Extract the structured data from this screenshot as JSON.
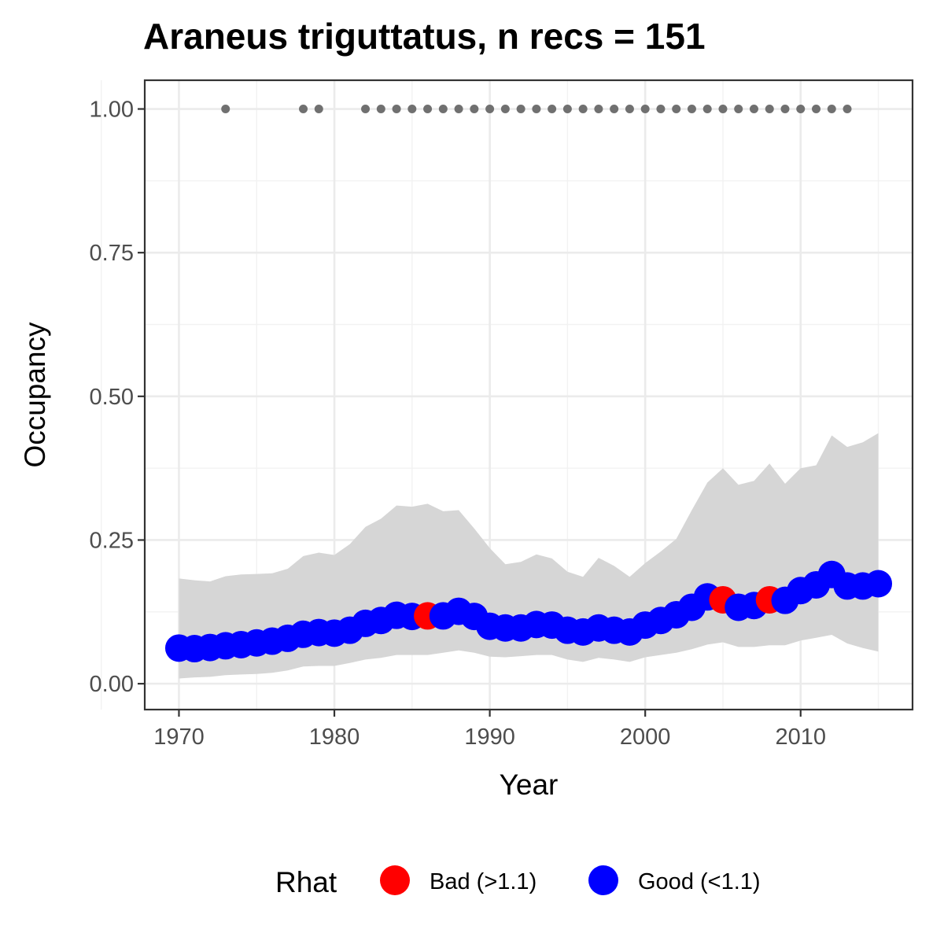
{
  "chart_data": {
    "type": "line",
    "title": "Araneus triguttatus, n recs = 151",
    "xlabel": "Year",
    "ylabel": "Occupancy",
    "xlim": [
      1967.8,
      2017.2
    ],
    "ylim": [
      -0.045,
      1.05
    ],
    "x_ticks": [
      1970,
      1980,
      1990,
      2000,
      2010
    ],
    "x_tick_labels": [
      "1970",
      "1980",
      "1990",
      "2000",
      "2010"
    ],
    "y_ticks": [
      0,
      0.25,
      0.5,
      0.75,
      1.0
    ],
    "y_tick_labels": [
      "0.00",
      "0.25",
      "0.50",
      "0.75",
      "1.00"
    ],
    "grid": true,
    "legend": {
      "title": "Rhat",
      "position": "bottom",
      "entries": [
        {
          "label": "Bad (>1.1)",
          "color": "#FF0000"
        },
        {
          "label": "Good (<1.1)",
          "color": "#0000FF"
        }
      ]
    },
    "colors": {
      "bad": "#FF0000",
      "good": "#0000FF",
      "ribbon": "#D6D6D6",
      "records": "#707070"
    },
    "x": [
      1970,
      1971,
      1972,
      1973,
      1974,
      1975,
      1976,
      1977,
      1978,
      1979,
      1980,
      1981,
      1982,
      1983,
      1984,
      1985,
      1986,
      1987,
      1988,
      1989,
      1990,
      1991,
      1992,
      1993,
      1994,
      1995,
      1996,
      1997,
      1998,
      1999,
      2000,
      2001,
      2002,
      2003,
      2004,
      2005,
      2006,
      2007,
      2008,
      2009,
      2010,
      2011,
      2012,
      2013,
      2014,
      2015
    ],
    "occupancy": [
      0.062,
      0.061,
      0.063,
      0.066,
      0.068,
      0.071,
      0.074,
      0.079,
      0.086,
      0.089,
      0.088,
      0.093,
      0.105,
      0.11,
      0.119,
      0.117,
      0.118,
      0.118,
      0.126,
      0.117,
      0.1,
      0.097,
      0.097,
      0.103,
      0.102,
      0.093,
      0.09,
      0.097,
      0.093,
      0.09,
      0.102,
      0.11,
      0.12,
      0.133,
      0.151,
      0.146,
      0.133,
      0.136,
      0.146,
      0.145,
      0.162,
      0.172,
      0.19,
      0.17,
      0.17,
      0.174
    ],
    "lower": [
      0.009,
      0.011,
      0.012,
      0.015,
      0.016,
      0.017,
      0.019,
      0.023,
      0.03,
      0.031,
      0.031,
      0.036,
      0.042,
      0.045,
      0.05,
      0.05,
      0.05,
      0.054,
      0.058,
      0.054,
      0.047,
      0.046,
      0.048,
      0.05,
      0.05,
      0.042,
      0.038,
      0.045,
      0.042,
      0.038,
      0.046,
      0.05,
      0.054,
      0.06,
      0.068,
      0.072,
      0.064,
      0.064,
      0.067,
      0.067,
      0.075,
      0.08,
      0.085,
      0.07,
      0.062,
      0.056
    ],
    "upper": [
      0.183,
      0.18,
      0.178,
      0.187,
      0.19,
      0.191,
      0.192,
      0.2,
      0.222,
      0.228,
      0.224,
      0.243,
      0.273,
      0.287,
      0.31,
      0.308,
      0.313,
      0.3,
      0.302,
      0.27,
      0.236,
      0.208,
      0.212,
      0.225,
      0.218,
      0.195,
      0.186,
      0.219,
      0.205,
      0.186,
      0.21,
      0.23,
      0.252,
      0.302,
      0.35,
      0.375,
      0.346,
      0.353,
      0.383,
      0.348,
      0.375,
      0.38,
      0.432,
      0.412,
      0.42,
      0.436
    ],
    "rhat": [
      "Good",
      "Good",
      "Good",
      "Good",
      "Good",
      "Good",
      "Good",
      "Good",
      "Good",
      "Good",
      "Good",
      "Good",
      "Good",
      "Good",
      "Good",
      "Good",
      "Bad",
      "Good",
      "Good",
      "Good",
      "Good",
      "Good",
      "Good",
      "Good",
      "Good",
      "Good",
      "Good",
      "Good",
      "Good",
      "Good",
      "Good",
      "Good",
      "Good",
      "Good",
      "Good",
      "Bad",
      "Good",
      "Good",
      "Bad",
      "Good",
      "Good",
      "Good",
      "Good",
      "Good",
      "Good",
      "Good"
    ],
    "record_years": [
      1973,
      1978,
      1979,
      1982,
      1983,
      1984,
      1985,
      1986,
      1987,
      1988,
      1989,
      1990,
      1991,
      1992,
      1993,
      1994,
      1995,
      1996,
      1997,
      1998,
      1999,
      2000,
      2001,
      2002,
      2003,
      2004,
      2005,
      2006,
      2007,
      2008,
      2009,
      2010,
      2011,
      2012,
      2013
    ],
    "record_value": 1.0
  }
}
